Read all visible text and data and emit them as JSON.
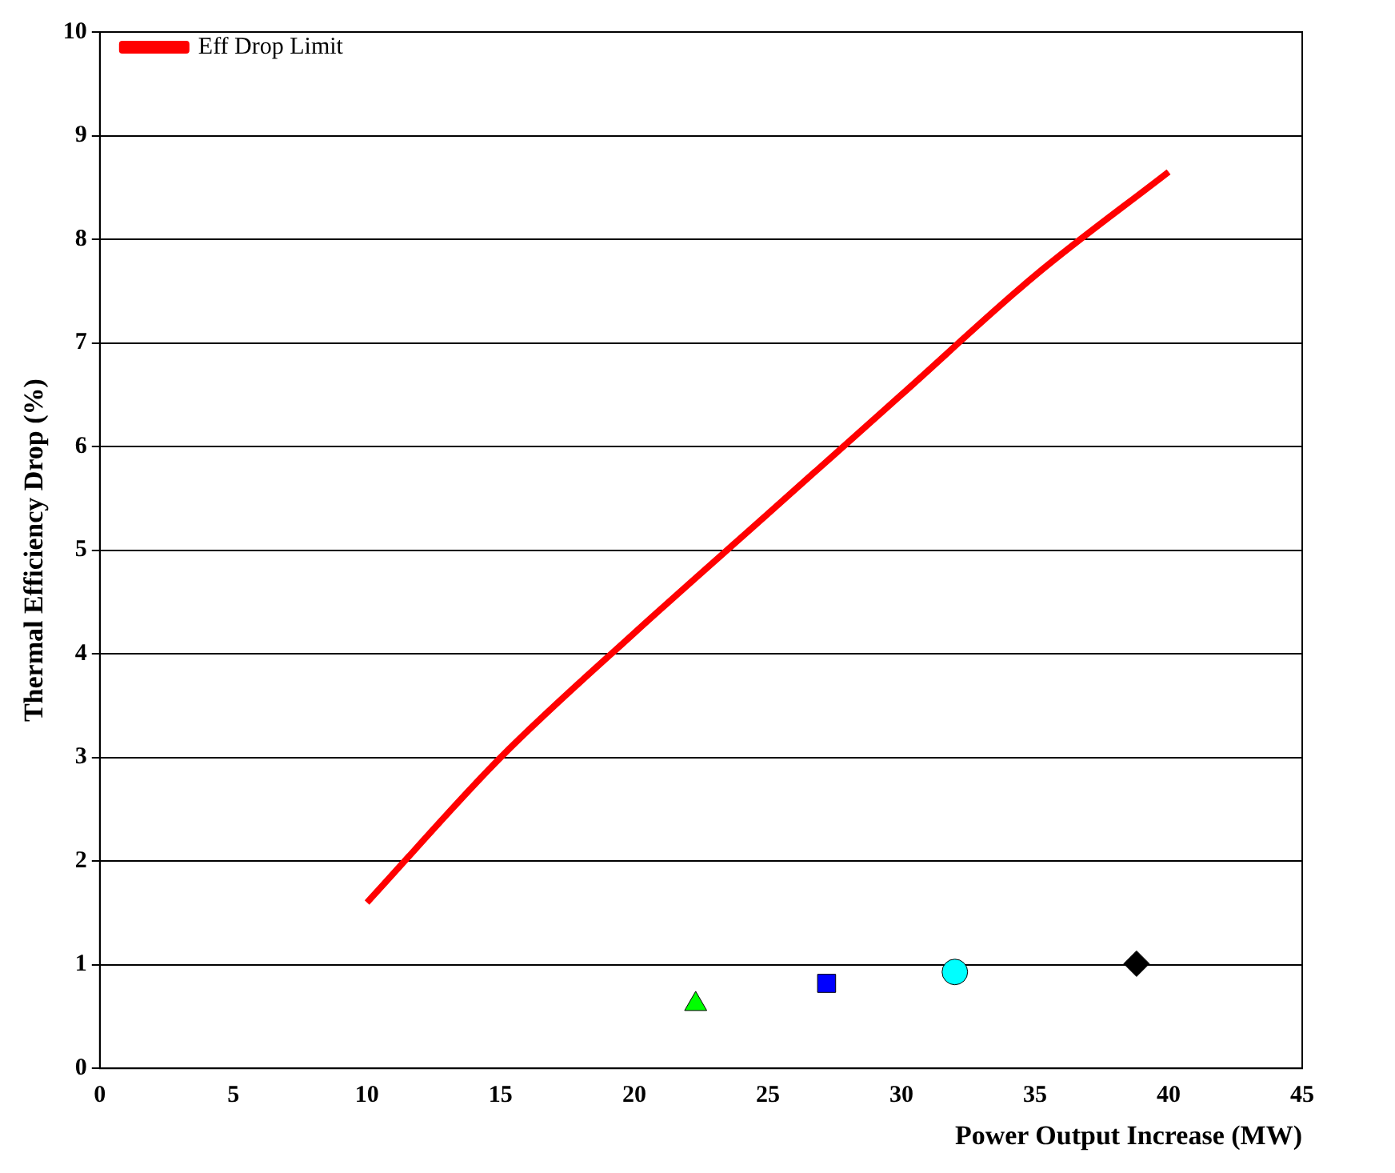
{
  "chart_data": {
    "type": "line",
    "xlabel": "Power Output Increase (MW)",
    "ylabel": "Thermal Efficiency Drop (%)",
    "xlim": [
      0,
      45
    ],
    "xticks": [
      0,
      5,
      10,
      15,
      20,
      25,
      30,
      35,
      40,
      45
    ],
    "ylim": [
      0,
      10
    ],
    "yticks": [
      0,
      1,
      2,
      3,
      4,
      5,
      6,
      7,
      8,
      9,
      10
    ],
    "grid": "y",
    "legend": "top left",
    "series": [
      {
        "name": "Eff Drop Limit",
        "type": "line",
        "color": "#ff0000",
        "marker": "none",
        "x": [
          10,
          15,
          20,
          25,
          30,
          35,
          40
        ],
        "values": [
          1.6,
          3.0,
          4.2,
          5.35,
          6.5,
          7.65,
          8.65
        ]
      },
      {
        "type": "scatter",
        "color": "#0000ff",
        "marker": "square",
        "x": [
          27.2
        ],
        "values": [
          0.82
        ]
      },
      {
        "type": "scatter",
        "color": "#00ff00",
        "marker": "triangle",
        "x": [
          22.3
        ],
        "values": [
          0.62
        ]
      },
      {
        "type": "scatter",
        "color": "#00ffff",
        "marker": "circle",
        "x": [
          32.0
        ],
        "values": [
          0.93
        ]
      },
      {
        "type": "scatter",
        "color": "#000000",
        "marker": "diamond",
        "x": [
          38.8
        ],
        "values": [
          1.01
        ]
      }
    ]
  }
}
